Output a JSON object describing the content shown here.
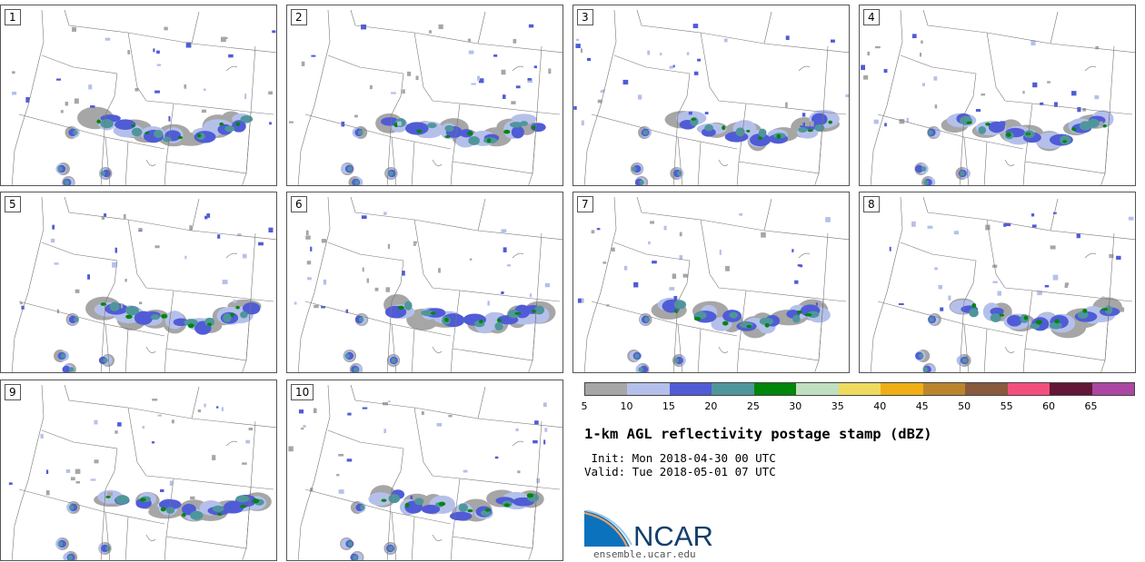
{
  "panels": [
    "1",
    "2",
    "3",
    "4",
    "5",
    "6",
    "7",
    "8",
    "9",
    "10"
  ],
  "chart_data": {
    "type": "heatmap",
    "title": "1-km AGL reflectivity postage stamp (dBZ)",
    "init": " Init: Mon 2018-04-30 00 UTC",
    "valid": "Valid: Tue 2018-05-01 07 UTC",
    "colorbar": {
      "ticks": [
        "5",
        "10",
        "15",
        "20",
        "25",
        "30",
        "35",
        "40",
        "45",
        "50",
        "55",
        "60",
        "65"
      ],
      "bounds": [
        5,
        10,
        15,
        20,
        25,
        30,
        35,
        40,
        45,
        50,
        55,
        60,
        65,
        70
      ],
      "colors": [
        "#a6a6a6",
        "#b5c0ea",
        "#505cd6",
        "#4f969c",
        "#00860a",
        "#c0dfc0",
        "#eedb5e",
        "#efae16",
        "#bb852e",
        "#885a3e",
        "#f34f7c",
        "#621737",
        "#ab47a2"
      ]
    }
  },
  "logo": {
    "text": "NCAR",
    "url": "ensemble.ucar.edu"
  }
}
